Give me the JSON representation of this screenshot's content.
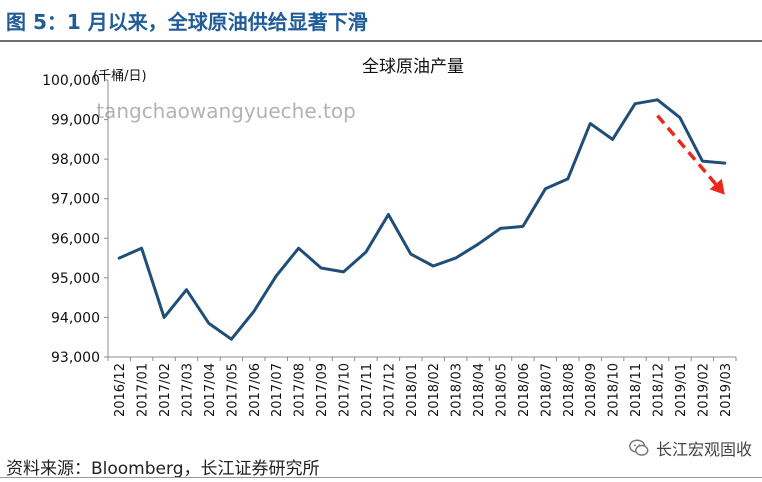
{
  "figure_title": "图 5：1 月以来，全球原油供给显著下滑",
  "source": "资料来源：Bloomberg，长江证券研究所",
  "brand": {
    "name": "长江宏观固收",
    "icon": "wechat-icon"
  },
  "watermark": "tangchaowangyueche.top",
  "colors": {
    "title": "#1f5c99",
    "line": "#1f4e79",
    "arrow": "#e8291c"
  },
  "chart_data": {
    "type": "line",
    "title": "全球原油产量",
    "unit_label": "(千桶/日)",
    "categories": [
      "2016/12",
      "2017/01",
      "2017/02",
      "2017/03",
      "2017/04",
      "2017/05",
      "2017/06",
      "2017/07",
      "2017/08",
      "2017/09",
      "2017/10",
      "2017/11",
      "2017/12",
      "2018/01",
      "2018/02",
      "2018/03",
      "2018/04",
      "2018/05",
      "2018/06",
      "2018/07",
      "2018/08",
      "2018/09",
      "2018/10",
      "2018/11",
      "2018/12",
      "2019/01",
      "2019/02",
      "2019/03"
    ],
    "series": [
      {
        "values": [
          95500,
          95750,
          94000,
          94700,
          93850,
          93450,
          94150,
          95050,
          95750,
          95250,
          95150,
          95650,
          96600,
          95600,
          95300,
          95500,
          95850,
          96250,
          96300,
          97250,
          97500,
          98900,
          98500,
          99400,
          99500,
          99050,
          97950,
          97900
        ]
      }
    ],
    "ylim": [
      93000,
      100000
    ],
    "yticks": [
      93000,
      94000,
      95000,
      96000,
      97000,
      98000,
      99000,
      100000
    ],
    "ytick_labels": [
      "93,000",
      "94,000",
      "95,000",
      "96,000",
      "97,000",
      "98,000",
      "99,000",
      "100,000"
    ],
    "grid": false,
    "annotation": {
      "type": "dashed-arrow",
      "from": [
        "2018/12",
        99100
      ],
      "to": [
        "2019/03",
        97100
      ]
    }
  }
}
